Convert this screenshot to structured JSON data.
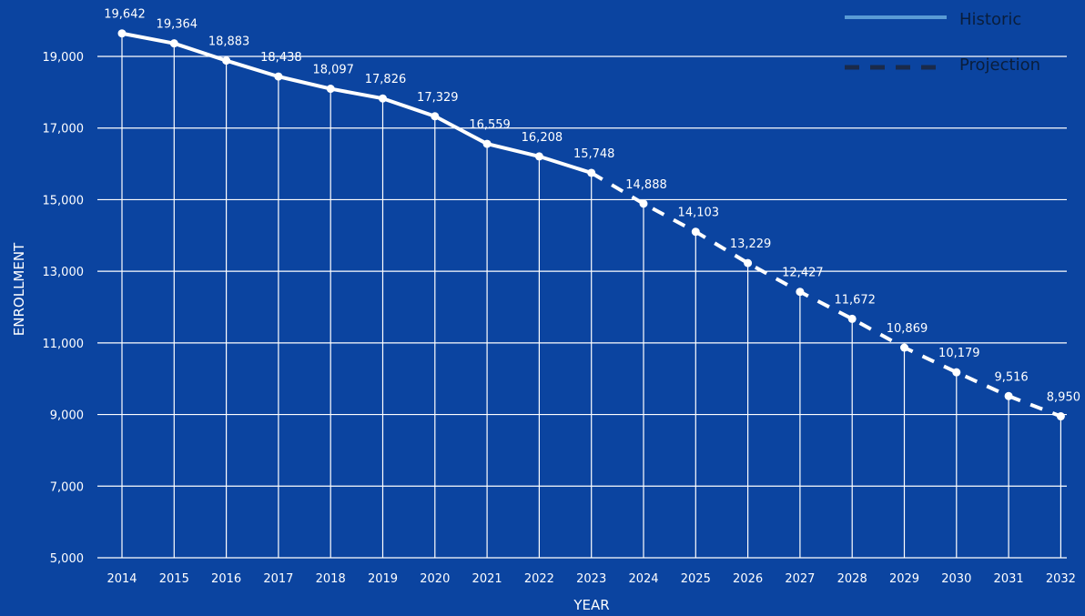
{
  "chart_data": {
    "type": "line",
    "xlabel": "YEAR",
    "ylabel": "ENROLLMENT",
    "ylim": [
      5000,
      19000
    ],
    "yticks": [
      5000,
      7000,
      9000,
      11000,
      13000,
      15000,
      17000,
      19000
    ],
    "ytick_labels": [
      "5,000",
      "7,000",
      "9,000",
      "11,000",
      "13,000",
      "15,000",
      "17,000",
      "19,000"
    ],
    "categories": [
      "2014",
      "2015",
      "2016",
      "2017",
      "2018",
      "2019",
      "2020",
      "2021",
      "2022",
      "2023",
      "2024",
      "2025",
      "2026",
      "2027",
      "2028",
      "2029",
      "2030",
      "2031",
      "2032"
    ],
    "values": [
      19642,
      19364,
      18883,
      18438,
      18097,
      17826,
      17329,
      16559,
      16208,
      15748,
      14888,
      14103,
      13229,
      12427,
      11672,
      10869,
      10179,
      9516,
      8950
    ],
    "value_labels": [
      "19,642",
      "19,364",
      "18,883",
      "18,438",
      "18,097",
      "17,826",
      "17,329",
      "16,559",
      "16,208",
      "15,748",
      "14,888",
      "14,103",
      "13,229",
      "12,427",
      "11,672",
      "10,869",
      "10,179",
      "9,516",
      "8,950"
    ],
    "historic_last_index": 9,
    "grid": true,
    "legend": {
      "placement": "top-right",
      "entries": [
        {
          "label": "Historic",
          "style": "solid",
          "color": "#5a9bd5"
        },
        {
          "label": "Projection",
          "style": "dashed",
          "color": "#1a2a4a"
        }
      ]
    },
    "colors": {
      "background": "#0b44a0",
      "line": "#ffffff",
      "grid": "#ffffff"
    }
  }
}
